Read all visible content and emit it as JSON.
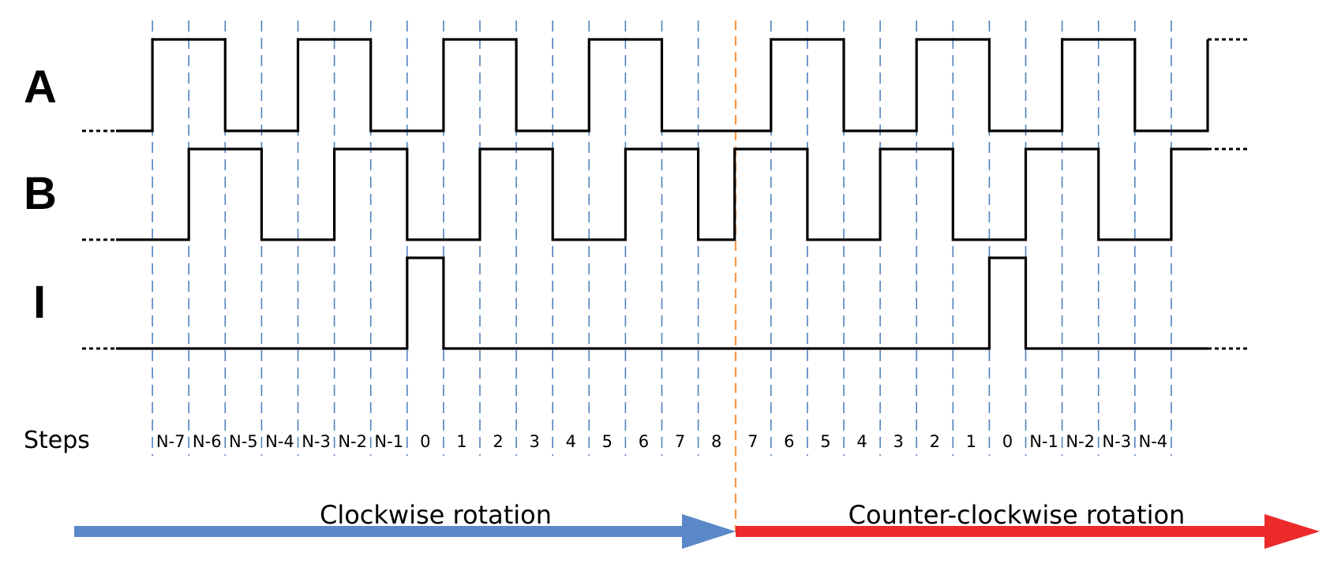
{
  "signals": [
    {
      "label": "A",
      "pattern": [
        0,
        1,
        1,
        0,
        0,
        1,
        1,
        0,
        0,
        1,
        1,
        0,
        0,
        1,
        1,
        0,
        0,
        0,
        1,
        1,
        0,
        0,
        1,
        1,
        0,
        0,
        1,
        1,
        0,
        0
      ],
      "tail": 1
    },
    {
      "label": "B",
      "pattern": [
        0,
        0,
        1,
        1,
        0,
        0,
        1,
        1,
        0,
        0,
        1,
        1,
        0,
        0,
        1,
        1,
        0,
        1,
        1,
        0,
        0,
        1,
        1,
        0,
        0,
        1,
        1,
        0,
        0,
        1
      ],
      "tail": 1
    },
    {
      "label": "I",
      "pattern": [
        0,
        0,
        0,
        0,
        0,
        0,
        0,
        0,
        1,
        0,
        0,
        0,
        0,
        0,
        0,
        0,
        0,
        0,
        0,
        0,
        0,
        0,
        0,
        0,
        1,
        0,
        0,
        0,
        0,
        0
      ],
      "tail": 0
    }
  ],
  "steps_title": "Steps",
  "steps": [
    "N-7",
    "N-6",
    "N-5",
    "N-4",
    "N-3",
    "N-2",
    "N-1",
    "0",
    "1",
    "2",
    "3",
    "4",
    "5",
    "6",
    "7",
    "8",
    "7",
    "6",
    "5",
    "4",
    "3",
    "2",
    "1",
    "0",
    "N-1",
    "N-2",
    "N-3",
    "N-4"
  ],
  "arrows": {
    "clockwise_label": "Clockwise rotation",
    "counterclockwise_label": "Counter-clockwise rotation",
    "clockwise_color": "#5a88c8",
    "counterclockwise_color": "#ec2a2a"
  },
  "colors": {
    "gridline": "#4f81bd",
    "divider": "#f79646",
    "wave": "#000000"
  }
}
